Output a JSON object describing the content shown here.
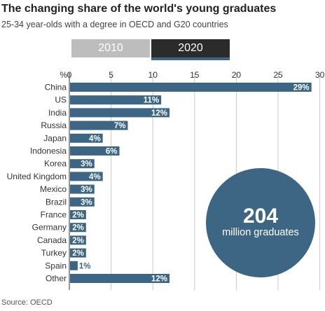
{
  "header": {
    "title": "The changing share of the world's young graduates",
    "subtitle": "25-34 year-olds with a degree in OECD and G20 countries"
  },
  "tabs": [
    {
      "label": "2010",
      "active": false
    },
    {
      "label": "2020",
      "active": true
    }
  ],
  "callout": {
    "number": "204",
    "text": "million graduates"
  },
  "source": "Source: OECD",
  "colors": {
    "bar": "#3d6685",
    "circle": "#3d6685",
    "tab_active": "#2b2b2b",
    "tab_inactive": "#bdbdbd"
  },
  "chart_data": {
    "type": "bar",
    "orientation": "horizontal",
    "xlabel": "%",
    "xlim": [
      0,
      30
    ],
    "xticks": [
      0,
      5,
      10,
      15,
      20,
      25,
      30
    ],
    "grid": true,
    "categories": [
      "China",
      "US",
      "India",
      "Russia",
      "Japan",
      "Indonesia",
      "Korea",
      "United Kingdom",
      "Mexico",
      "Brazil",
      "France",
      "Germany",
      "Canada",
      "Turkey",
      "Spain",
      "Other"
    ],
    "values": [
      29,
      11,
      12,
      7,
      4,
      6,
      3,
      4,
      3,
      3,
      2,
      2,
      2,
      2,
      1,
      12
    ],
    "data_labels": [
      "29%",
      "11%",
      "12%",
      "7%",
      "4%",
      "6%",
      "3%",
      "4%",
      "3%",
      "3%",
      "2%",
      "2%",
      "2%",
      "2%",
      "1%",
      "12%"
    ]
  }
}
